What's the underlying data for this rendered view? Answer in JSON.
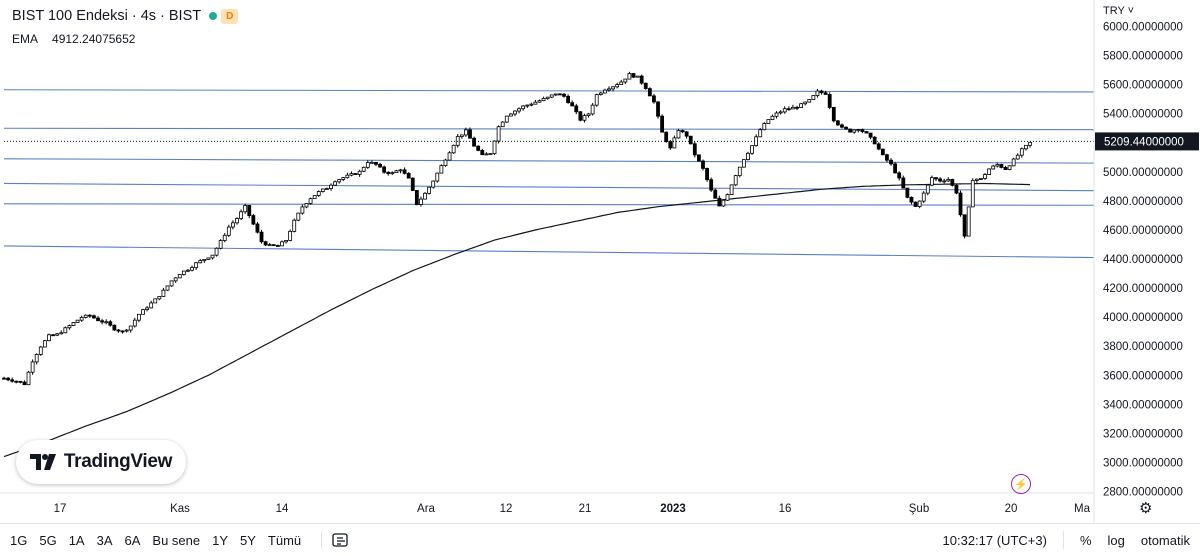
{
  "header": {
    "title": "BIST 100 Endeksi · 4s · BIST",
    "status_badge": "D",
    "ema_label": "EMA",
    "ema_value": "4912.24075652"
  },
  "currency": "TRY",
  "logo_text": "TradingView",
  "bottom_toolbar": {
    "timeframes": [
      "1G",
      "5G",
      "1A",
      "3A",
      "6A",
      "Bu sene",
      "1Y",
      "5Y",
      "Tümü"
    ],
    "clock": "10:32:17 (UTC+3)",
    "percent_label": "%",
    "log_label": "log",
    "auto_label": "otomatik"
  },
  "colors": {
    "candle": "#000000",
    "ema_line": "#131722",
    "trend_lines": "#5b7fc9",
    "price_label_bg": "#131722",
    "status_dot": "#22ab94",
    "badge_text": "#f57c00"
  },
  "chart_data": {
    "type": "candlestick",
    "title": "BIST 100 Endeksi · 4s · BIST",
    "x_tick_labels": [
      "17",
      "Kas",
      "14",
      "Ara",
      "12",
      "21",
      "2023",
      "16",
      "Şub",
      "20",
      "Ma"
    ],
    "y_tick_labels": [
      "6000.00000000",
      "5800.00000000",
      "5600.00000000",
      "5400.00000000",
      "5200.00000000",
      "5000.00000000",
      "4800.00000000",
      "4600.00000000",
      "4400.00000000",
      "4200.00000000",
      "4000.00000000",
      "3800.00000000",
      "3600.00000000",
      "3400.00000000",
      "3200.00000000",
      "3000.00000000",
      "2800.00000000"
    ],
    "ylim": [
      2800,
      6000
    ],
    "last_price_label": "5209.44000000",
    "last_price": 5209.44,
    "close_path": [
      [
        0,
        3580
      ],
      [
        3,
        3560
      ],
      [
        5,
        3540
      ],
      [
        7,
        3700
      ],
      [
        9,
        3800
      ],
      [
        11,
        3870
      ],
      [
        13,
        3880
      ],
      [
        15,
        3920
      ],
      [
        17,
        3960
      ],
      [
        19,
        4000
      ],
      [
        21,
        4010
      ],
      [
        23,
        3980
      ],
      [
        25,
        3960
      ],
      [
        27,
        3920
      ],
      [
        29,
        3900
      ],
      [
        31,
        3940
      ],
      [
        33,
        4020
      ],
      [
        35,
        4070
      ],
      [
        37,
        4120
      ],
      [
        39,
        4180
      ],
      [
        41,
        4250
      ],
      [
        43,
        4300
      ],
      [
        45,
        4330
      ],
      [
        47,
        4370
      ],
      [
        49,
        4400
      ],
      [
        51,
        4430
      ],
      [
        53,
        4520
      ],
      [
        55,
        4620
      ],
      [
        57,
        4680
      ],
      [
        59,
        4760
      ],
      [
        61,
        4640
      ],
      [
        63,
        4520
      ],
      [
        65,
        4490
      ],
      [
        67,
        4490
      ],
      [
        69,
        4530
      ],
      [
        71,
        4660
      ],
      [
        73,
        4760
      ],
      [
        75,
        4820
      ],
      [
        77,
        4860
      ],
      [
        79,
        4890
      ],
      [
        81,
        4940
      ],
      [
        83,
        4960
      ],
      [
        85,
        4980
      ],
      [
        87,
        5000
      ],
      [
        89,
        5070
      ],
      [
        91,
        5050
      ],
      [
        93,
        5000
      ],
      [
        95,
        4990
      ],
      [
        97,
        5020
      ],
      [
        99,
        4950
      ],
      [
        101,
        4780
      ],
      [
        103,
        4850
      ],
      [
        105,
        4940
      ],
      [
        107,
        5040
      ],
      [
        109,
        5140
      ],
      [
        111,
        5240
      ],
      [
        113,
        5280
      ],
      [
        115,
        5180
      ],
      [
        117,
        5110
      ],
      [
        119,
        5130
      ],
      [
        121,
        5310
      ],
      [
        123,
        5390
      ],
      [
        125,
        5420
      ],
      [
        127,
        5450
      ],
      [
        129,
        5470
      ],
      [
        131,
        5490
      ],
      [
        133,
        5510
      ],
      [
        135,
        5540
      ],
      [
        137,
        5520
      ],
      [
        139,
        5450
      ],
      [
        141,
        5360
      ],
      [
        143,
        5400
      ],
      [
        145,
        5530
      ],
      [
        147,
        5570
      ],
      [
        149,
        5590
      ],
      [
        151,
        5620
      ],
      [
        153,
        5670
      ],
      [
        155,
        5650
      ],
      [
        157,
        5580
      ],
      [
        159,
        5480
      ],
      [
        161,
        5270
      ],
      [
        163,
        5160
      ],
      [
        165,
        5290
      ],
      [
        167,
        5250
      ],
      [
        169,
        5120
      ],
      [
        171,
        5020
      ],
      [
        173,
        4870
      ],
      [
        175,
        4760
      ],
      [
        177,
        4850
      ],
      [
        179,
        4980
      ],
      [
        181,
        5090
      ],
      [
        183,
        5180
      ],
      [
        185,
        5290
      ],
      [
        187,
        5360
      ],
      [
        189,
        5400
      ],
      [
        191,
        5430
      ],
      [
        193,
        5440
      ],
      [
        195,
        5460
      ],
      [
        197,
        5490
      ],
      [
        199,
        5550
      ],
      [
        201,
        5540
      ],
      [
        203,
        5360
      ],
      [
        205,
        5300
      ],
      [
        207,
        5280
      ],
      [
        209,
        5300
      ],
      [
        211,
        5260
      ],
      [
        213,
        5200
      ],
      [
        215,
        5110
      ],
      [
        217,
        5050
      ],
      [
        219,
        4950
      ],
      [
        221,
        4820
      ],
      [
        223,
        4760
      ],
      [
        225,
        4850
      ],
      [
        227,
        4960
      ],
      [
        229,
        4940
      ],
      [
        231,
        4950
      ],
      [
        233,
        4860
      ],
      [
        235,
        4550
      ],
      [
        237,
        4950
      ],
      [
        239,
        4950
      ],
      [
        241,
        5020
      ],
      [
        243,
        5050
      ],
      [
        245,
        5020
      ],
      [
        247,
        5080
      ],
      [
        249,
        5150
      ],
      [
        251,
        5200
      ]
    ],
    "ema_path": [
      [
        0,
        3040
      ],
      [
        10,
        3140
      ],
      [
        20,
        3250
      ],
      [
        30,
        3350
      ],
      [
        40,
        3470
      ],
      [
        50,
        3600
      ],
      [
        60,
        3750
      ],
      [
        70,
        3900
      ],
      [
        80,
        4050
      ],
      [
        90,
        4190
      ],
      [
        100,
        4320
      ],
      [
        110,
        4430
      ],
      [
        120,
        4530
      ],
      [
        130,
        4600
      ],
      [
        140,
        4660
      ],
      [
        150,
        4720
      ],
      [
        160,
        4760
      ],
      [
        170,
        4790
      ],
      [
        180,
        4820
      ],
      [
        190,
        4850
      ],
      [
        200,
        4880
      ],
      [
        210,
        4900
      ],
      [
        220,
        4910
      ],
      [
        230,
        4915
      ],
      [
        240,
        4920
      ],
      [
        251,
        4912
      ]
    ],
    "horizontal_levels": [
      {
        "y_start": 5550,
        "y_end": 5565
      },
      {
        "y_start": 5290,
        "y_end": 5300
      },
      {
        "y_start": 5060,
        "y_end": 5090
      },
      {
        "y_start": 4870,
        "y_end": 4920
      },
      {
        "y_start": 4770,
        "y_end": 4780
      },
      {
        "y_start": 4410,
        "y_end": 4490
      }
    ],
    "grid": false
  }
}
